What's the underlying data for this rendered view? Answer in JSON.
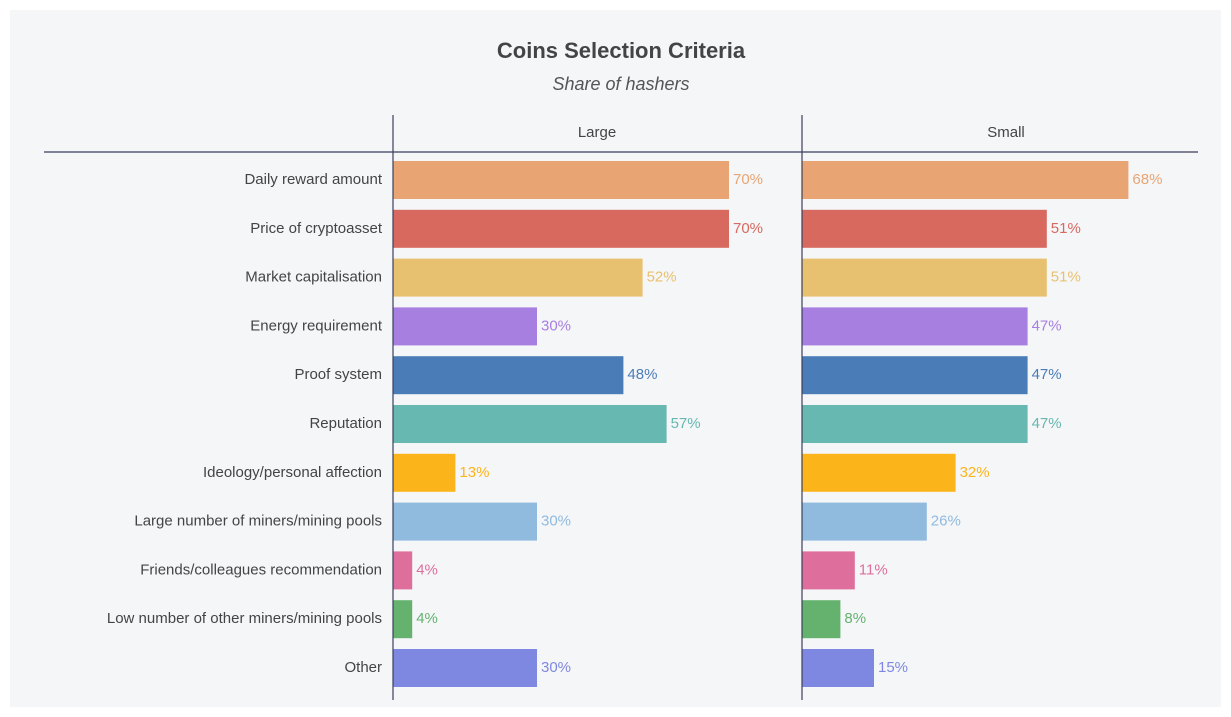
{
  "chart_data": {
    "type": "bar",
    "orientation": "horizontal",
    "title": "Coins Selection Criteria",
    "subtitle": "Share of hashers",
    "categories": [
      "Daily reward amount",
      "Price of cryptoasset",
      "Market capitalisation",
      "Energy requirement",
      "Proof system",
      "Reputation",
      "Ideology/personal affection",
      "Large number of miners/mining pools",
      "Friends/colleagues recommendation",
      "Low number of other miners/mining pools",
      "Other"
    ],
    "colors": [
      "#e8a573",
      "#d7695f",
      "#e8c170",
      "#a77fe0",
      "#4a7db8",
      "#67b8b0",
      "#fbb51a",
      "#91badf",
      "#de6f9c",
      "#65b26f",
      "#7f88e0"
    ],
    "xlim": [
      0,
      85
    ],
    "series": [
      {
        "name": "Large",
        "values": [
          70,
          70,
          52,
          30,
          48,
          57,
          13,
          30,
          4,
          4,
          30
        ],
        "value_labels": [
          "70%",
          "70%",
          "52%",
          "30%",
          "48%",
          "57%",
          "13%",
          "30%",
          "4%",
          "4%",
          "30%"
        ]
      },
      {
        "name": "Small",
        "values": [
          68,
          51,
          51,
          47,
          47,
          47,
          32,
          26,
          11,
          8,
          15
        ],
        "value_labels": [
          "68%",
          "51%",
          "51%",
          "47%",
          "47%",
          "47%",
          "32%",
          "26%",
          "11%",
          "8%",
          "15%"
        ]
      }
    ]
  }
}
